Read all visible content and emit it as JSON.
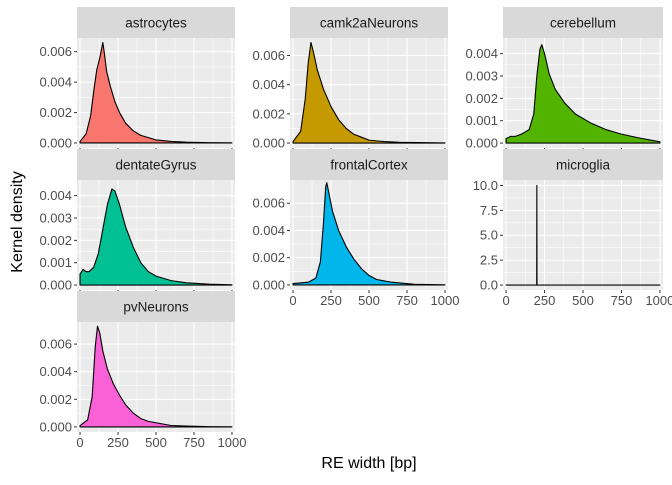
{
  "chart_data": {
    "type": "area",
    "xlabel": "RE width [bp]",
    "ylabel": "Kernel density",
    "x_ticks": [
      0,
      250,
      500,
      750,
      1000
    ],
    "xlim": [
      -20,
      1020
    ],
    "colors": {
      "panel_bg": "#ebebeb",
      "grid": "#ffffff",
      "strip_bg": "#d9d9d9",
      "outline": "#000000"
    },
    "panels": [
      {
        "name": "astrocytes",
        "fill": "#f8766d",
        "ylim": [
          -0.00033,
          0.0069
        ],
        "y_ticks": [
          0,
          0.002,
          0.004,
          0.006
        ],
        "y_tick_labels": [
          "0.000",
          "0.002",
          "0.004",
          "0.006"
        ],
        "x_tick_labels": [
          "",
          "",
          "",
          "",
          ""
        ],
        "points": [
          [
            0,
            0.0001
          ],
          [
            40,
            0.0006
          ],
          [
            70,
            0.0018
          ],
          [
            90,
            0.0034
          ],
          [
            110,
            0.0048
          ],
          [
            130,
            0.0056
          ],
          [
            150,
            0.0066
          ],
          [
            160,
            0.0059
          ],
          [
            175,
            0.0047
          ],
          [
            200,
            0.0037
          ],
          [
            230,
            0.0027
          ],
          [
            260,
            0.002
          ],
          [
            300,
            0.0013
          ],
          [
            350,
            0.0008
          ],
          [
            400,
            0.0005
          ],
          [
            450,
            0.00035
          ],
          [
            500,
            0.0002
          ],
          [
            600,
            0.0001
          ],
          [
            700,
            5e-05
          ],
          [
            850,
            2e-05
          ],
          [
            1000,
            1e-05
          ]
        ]
      },
      {
        "name": "camk2aNeurons",
        "fill": "#c49a00",
        "ylim": [
          -0.00034,
          0.0072
        ],
        "y_ticks": [
          0,
          0.002,
          0.004,
          0.006
        ],
        "y_tick_labels": [
          "0.000",
          "0.002",
          "0.004",
          "0.006"
        ],
        "x_tick_labels": [
          "",
          "",
          "",
          "",
          ""
        ],
        "points": [
          [
            0,
            0.0001
          ],
          [
            50,
            0.0008
          ],
          [
            80,
            0.003
          ],
          [
            100,
            0.0055
          ],
          [
            118,
            0.0069
          ],
          [
            135,
            0.0062
          ],
          [
            160,
            0.005
          ],
          [
            200,
            0.0037
          ],
          [
            250,
            0.0025
          ],
          [
            300,
            0.0016
          ],
          [
            350,
            0.001
          ],
          [
            400,
            0.0006
          ],
          [
            450,
            0.0004
          ],
          [
            500,
            0.0002
          ],
          [
            600,
            0.0001
          ],
          [
            700,
            5e-05
          ],
          [
            1000,
            1e-05
          ]
        ]
      },
      {
        "name": "cerebellum",
        "fill": "#53b400",
        "ylim": [
          -0.00022,
          0.0047
        ],
        "y_ticks": [
          0,
          0.001,
          0.002,
          0.003,
          0.004
        ],
        "y_tick_labels": [
          "0.000",
          "0.001",
          "0.002",
          "0.003",
          "0.004"
        ],
        "x_tick_labels": [
          "",
          "",
          "",
          "",
          ""
        ],
        "points": [
          [
            0,
            0.0002
          ],
          [
            30,
            0.0003
          ],
          [
            60,
            0.0003
          ],
          [
            100,
            0.0004
          ],
          [
            150,
            0.0006
          ],
          [
            180,
            0.0013
          ],
          [
            200,
            0.003
          ],
          [
            220,
            0.0042
          ],
          [
            232,
            0.0044
          ],
          [
            250,
            0.004
          ],
          [
            280,
            0.0031
          ],
          [
            320,
            0.0024
          ],
          [
            380,
            0.0018
          ],
          [
            450,
            0.0013
          ],
          [
            550,
            0.0009
          ],
          [
            650,
            0.0006
          ],
          [
            750,
            0.0004
          ],
          [
            850,
            0.00025
          ],
          [
            950,
            0.00012
          ],
          [
            1000,
            6e-05
          ]
        ]
      },
      {
        "name": "dentateGyrus",
        "fill": "#00c094",
        "ylim": [
          -0.00022,
          0.0047
        ],
        "y_ticks": [
          0,
          0.001,
          0.002,
          0.003,
          0.004
        ],
        "y_tick_labels": [
          "0.000",
          "0.001",
          "0.002",
          "0.003",
          "0.004"
        ],
        "x_tick_labels": [
          "",
          "",
          "",
          "",
          ""
        ],
        "points": [
          [
            0,
            0.0005
          ],
          [
            20,
            0.0007
          ],
          [
            40,
            0.0006
          ],
          [
            60,
            0.0006
          ],
          [
            90,
            0.0008
          ],
          [
            120,
            0.0014
          ],
          [
            150,
            0.0025
          ],
          [
            180,
            0.0036
          ],
          [
            210,
            0.0043
          ],
          [
            230,
            0.0042
          ],
          [
            260,
            0.0036
          ],
          [
            300,
            0.0026
          ],
          [
            350,
            0.0017
          ],
          [
            400,
            0.001
          ],
          [
            450,
            0.0006
          ],
          [
            500,
            0.0004
          ],
          [
            600,
            0.0002
          ],
          [
            700,
            0.0001
          ],
          [
            850,
            4e-05
          ],
          [
            1000,
            1e-05
          ]
        ]
      },
      {
        "name": "frontalCortex",
        "fill": "#00b6eb",
        "ylim": [
          -0.00037,
          0.0077
        ],
        "y_ticks": [
          0,
          0.002,
          0.004,
          0.006
        ],
        "y_tick_labels": [
          "0.000",
          "0.002",
          "0.004",
          "0.006"
        ],
        "x_tick_labels": [
          "0",
          "250",
          "500",
          "750",
          "1000"
        ],
        "points": [
          [
            0,
            0.0001
          ],
          [
            100,
            0.0002
          ],
          [
            150,
            0.0005
          ],
          [
            180,
            0.0017
          ],
          [
            200,
            0.0045
          ],
          [
            215,
            0.0072
          ],
          [
            222,
            0.0075
          ],
          [
            235,
            0.0068
          ],
          [
            260,
            0.0054
          ],
          [
            300,
            0.004
          ],
          [
            350,
            0.0028
          ],
          [
            400,
            0.0019
          ],
          [
            450,
            0.0012
          ],
          [
            500,
            0.0007
          ],
          [
            550,
            0.0004
          ],
          [
            650,
            0.0002
          ],
          [
            800,
            5e-05
          ],
          [
            1000,
            1e-05
          ]
        ]
      },
      {
        "name": "microglia",
        "fill": "#a58aff",
        "ylim": [
          -0.5,
          10.55
        ],
        "y_ticks": [
          0,
          2.5,
          5,
          7.5,
          10
        ],
        "y_tick_labels": [
          "0.0",
          "2.5",
          "5.0",
          "7.5",
          "10.0"
        ],
        "x_tick_labels": [
          "0",
          "250",
          "500",
          "750",
          "1000"
        ],
        "points": [
          [
            0,
            0
          ],
          [
            199,
            0
          ],
          [
            200,
            10
          ],
          [
            201,
            0
          ],
          [
            1000,
            0
          ]
        ]
      },
      {
        "name": "pvNeurons",
        "fill": "#fb61d7",
        "ylim": [
          -0.00037,
          0.0076
        ],
        "y_ticks": [
          0,
          0.002,
          0.004,
          0.006
        ],
        "y_tick_labels": [
          "0.000",
          "0.002",
          "0.004",
          "0.006"
        ],
        "x_tick_labels": [
          "0",
          "250",
          "500",
          "750",
          "1000"
        ],
        "points": [
          [
            0,
            0.0001
          ],
          [
            50,
            0.0005
          ],
          [
            80,
            0.0022
          ],
          [
            100,
            0.0058
          ],
          [
            115,
            0.0073
          ],
          [
            130,
            0.0068
          ],
          [
            150,
            0.0055
          ],
          [
            180,
            0.0042
          ],
          [
            220,
            0.0031
          ],
          [
            260,
            0.0023
          ],
          [
            300,
            0.0016
          ],
          [
            350,
            0.001
          ],
          [
            400,
            0.0006
          ],
          [
            450,
            0.0004
          ],
          [
            500,
            0.0003
          ],
          [
            600,
            0.0001
          ],
          [
            700,
            6e-05
          ],
          [
            850,
            2e-05
          ],
          [
            1000,
            1e-05
          ]
        ]
      }
    ]
  }
}
